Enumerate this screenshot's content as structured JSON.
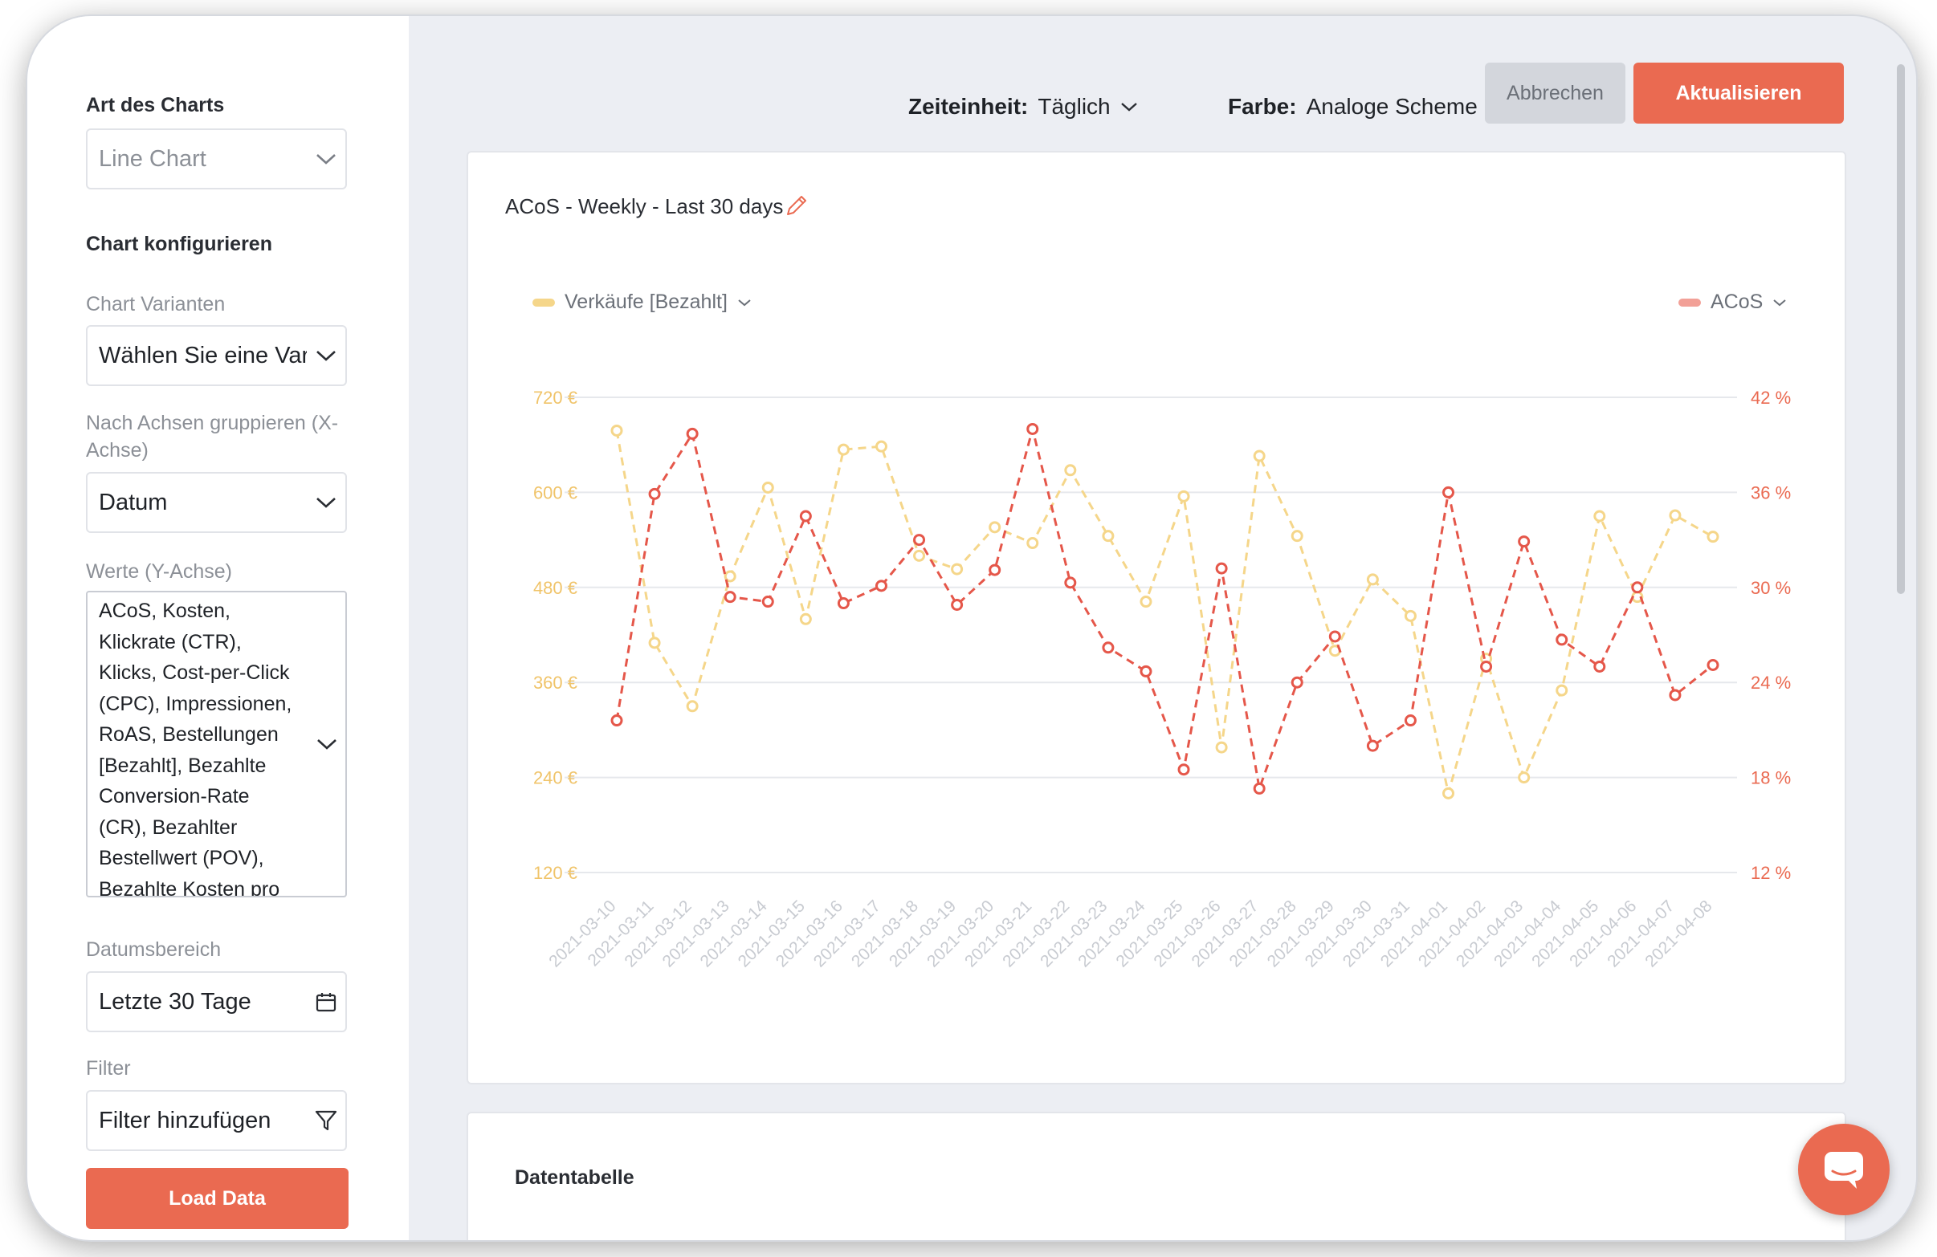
{
  "sidebar": {
    "chart_type_label": "Art des Charts",
    "chart_type_value": "Line Chart",
    "configure_label": "Chart konfigurieren",
    "variants_label": "Chart Varianten",
    "variants_value": "Wählen Sie eine Vari",
    "group_label": "Nach Achsen gruppieren (X-Achse)",
    "group_value": "Datum",
    "values_label": "Werte (Y-Achse)",
    "values_lines": [
      "ACoS, Kosten,",
      "Klickrate (CTR),",
      "Klicks, Cost-per-Click",
      "(CPC), Impressionen,",
      "RoAS, Bestellungen",
      "[Bezahlt], Bezahlte",
      "Conversion-Rate",
      "(CR), Bezahlter",
      "Bestellwert (POV),",
      "Bezahlte Kosten pro"
    ],
    "date_range_label": "Datumsbereich",
    "date_range_value": "Letzte 30 Tage",
    "filter_label": "Filter",
    "filter_value": "Filter hinzufügen",
    "load_button": "Load Data"
  },
  "toolbar": {
    "time_unit_label": "Zeiteinheit:",
    "time_unit_value": "Täglich",
    "color_label": "Farbe:",
    "color_value": "Analoge Scheme",
    "cancel_button": "Abbrechen",
    "update_button": "Aktualisieren"
  },
  "chart_card": {
    "title": "ACoS - Weekly - Last 30 days",
    "legend_left": "Verkäufe [Bezahlt]",
    "legend_right": "ACoS"
  },
  "table_card": {
    "title": "Datentabelle"
  },
  "colors": {
    "accent": "#ea6a51",
    "sales": "#f5d68a",
    "acos": "#e5574a",
    "left_axis": "#f0c46a",
    "right_axis": "#ea6a51"
  },
  "icons": [
    "chevron-down-icon",
    "calendar-icon",
    "filter-icon",
    "pencil-icon",
    "chat-icon"
  ],
  "chart_data": {
    "type": "line",
    "x": [
      "2021-03-10",
      "2021-03-11",
      "2021-03-12",
      "2021-03-13",
      "2021-03-14",
      "2021-03-15",
      "2021-03-16",
      "2021-03-17",
      "2021-03-18",
      "2021-03-19",
      "2021-03-20",
      "2021-03-21",
      "2021-03-22",
      "2021-03-23",
      "2021-03-24",
      "2021-03-25",
      "2021-03-26",
      "2021-03-27",
      "2021-03-28",
      "2021-03-29",
      "2021-03-30",
      "2021-03-31",
      "2021-04-01",
      "2021-04-02",
      "2021-04-03",
      "2021-04-04",
      "2021-04-05",
      "2021-04-06",
      "2021-04-07",
      "2021-04-08"
    ],
    "series": [
      {
        "name": "Verkäufe [Bezahlt]",
        "axis": "left",
        "values": [
          678,
          410,
          330,
          494,
          606,
          440,
          654,
          658,
          520,
          503,
          556,
          536,
          628,
          545,
          462,
          595,
          278,
          646,
          545,
          400,
          490,
          444,
          220,
          390,
          240,
          350,
          570,
          468,
          571,
          544
        ]
      },
      {
        "name": "ACoS",
        "axis": "right",
        "values": [
          21.6,
          35.9,
          39.7,
          29.4,
          29.1,
          34.5,
          29.0,
          30.1,
          33.0,
          28.9,
          31.1,
          40.0,
          30.3,
          26.2,
          24.7,
          18.5,
          31.2,
          17.3,
          24.0,
          26.9,
          20.0,
          21.6,
          36.0,
          25.0,
          32.9,
          26.7,
          25.0,
          30.0,
          23.2,
          25.1
        ]
      }
    ],
    "y_left": {
      "ticks": [
        "720 €",
        "600 €",
        "480 €",
        "360 €",
        "240 €",
        "120 €"
      ],
      "range": [
        120,
        720
      ]
    },
    "y_right": {
      "ticks": [
        "42 %",
        "36 %",
        "30 %",
        "24 %",
        "18 %",
        "12 %"
      ],
      "range": [
        12,
        42
      ]
    },
    "grid": true,
    "legend": "top"
  }
}
